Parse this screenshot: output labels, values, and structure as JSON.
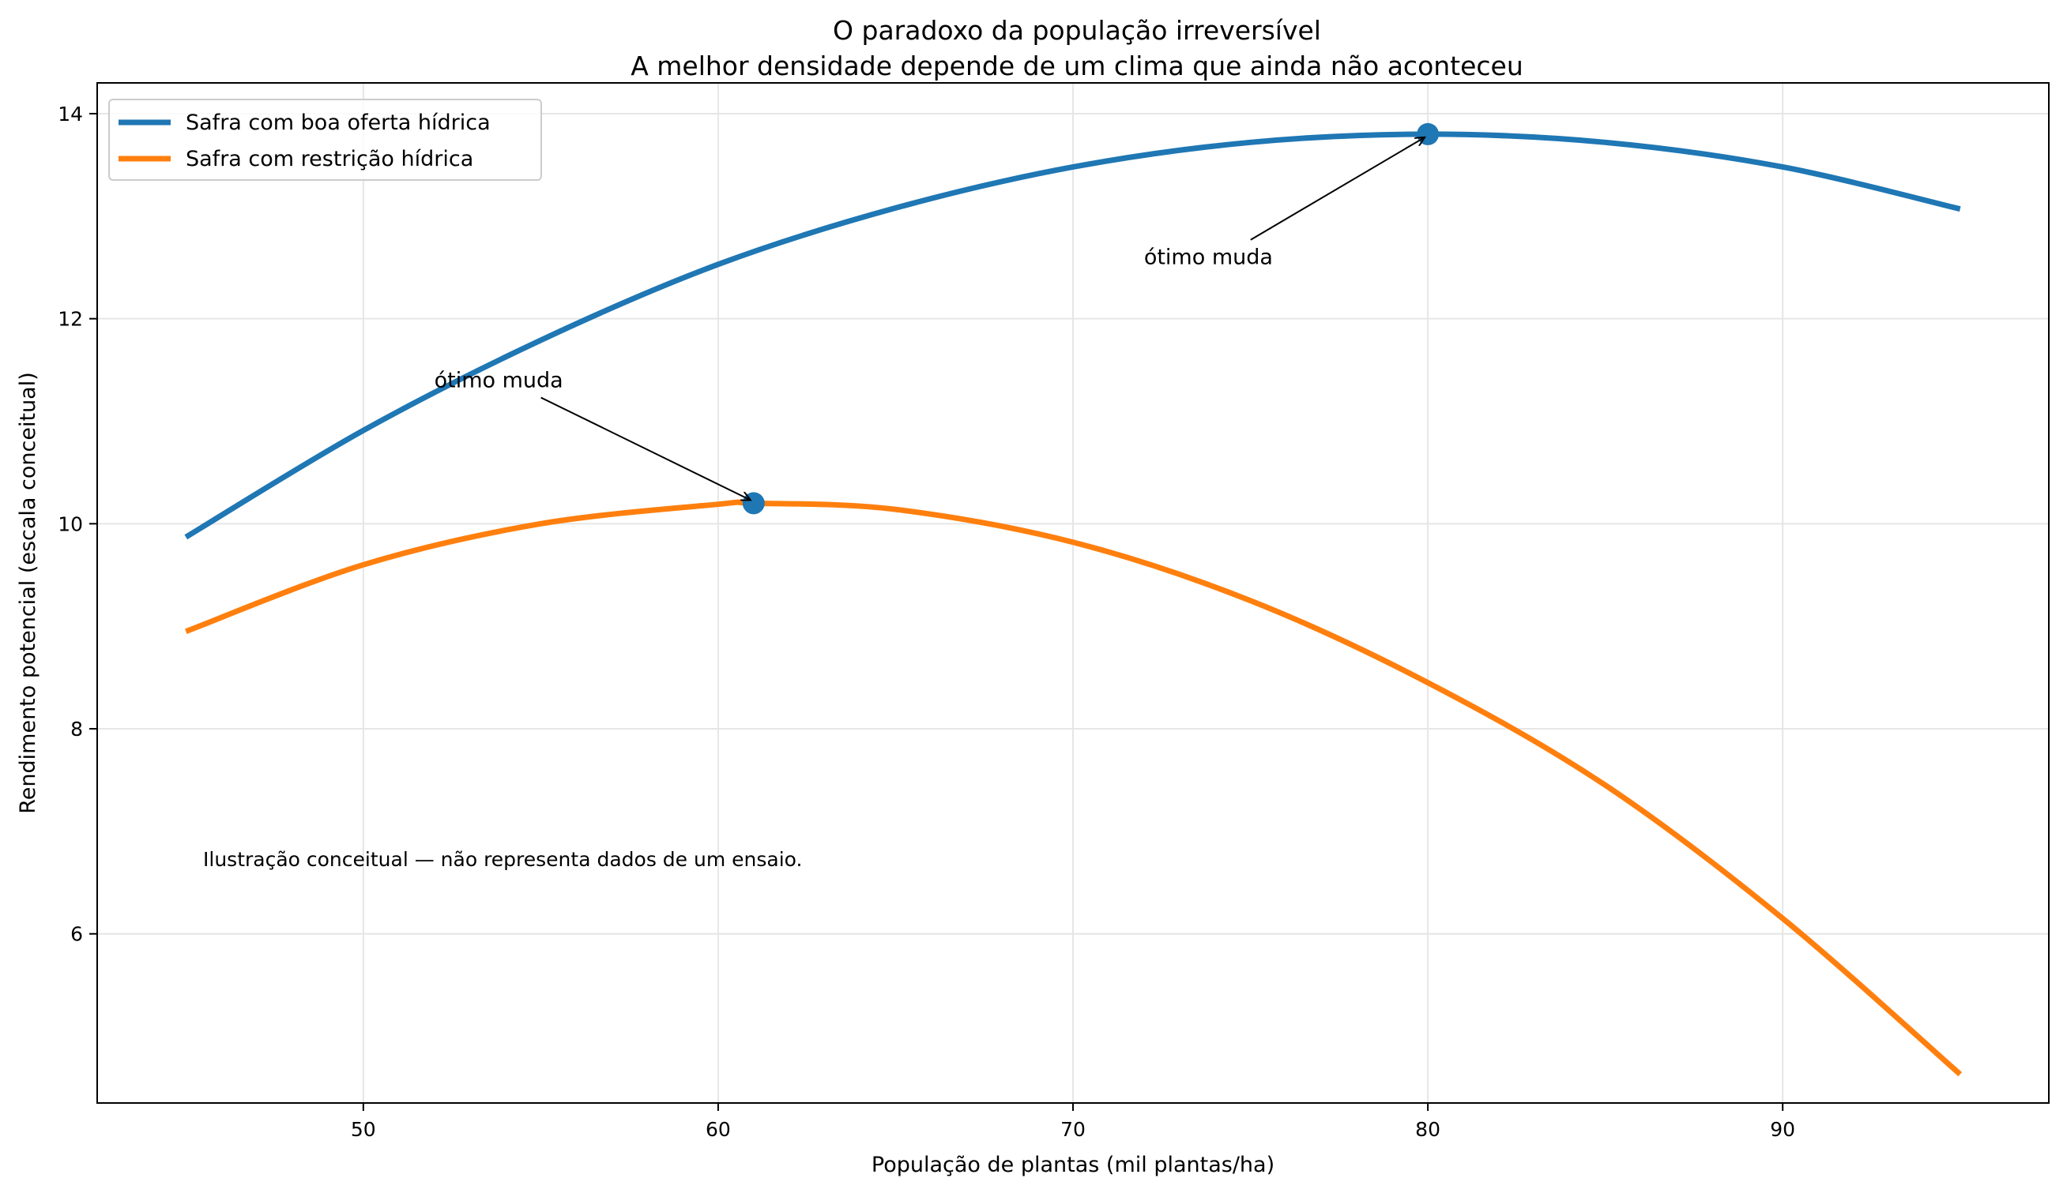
{
  "chart_data": {
    "type": "line",
    "title": "O paradoxo da população irreversível",
    "subtitle": "A melhor densidade depende de um clima que ainda não aconteceu",
    "xlabel": "População de plantas (mil plantas/ha)",
    "ylabel": "Rendimento potencial (escala conceitual)",
    "xlim": [
      42.5,
      97.5
    ],
    "ylim": [
      4.35,
      14.3
    ],
    "xticks": [
      50,
      60,
      70,
      80,
      90
    ],
    "yticks": [
      6,
      8,
      10,
      12,
      14
    ],
    "xtick_labels": [
      "50",
      "60",
      "70",
      "80",
      "90"
    ],
    "ytick_labels": [
      "6",
      "8",
      "10",
      "12",
      "14"
    ],
    "grid": true,
    "legend_position": "top-left",
    "series": [
      {
        "name": "Safra com boa oferta hídrica",
        "color": "#1f77b4",
        "x": [
          45,
          50,
          55,
          60,
          65,
          70,
          75,
          80,
          85,
          90,
          95
        ],
        "y": [
          9.87,
          10.91,
          11.79,
          12.53,
          13.08,
          13.48,
          13.72,
          13.8,
          13.72,
          13.48,
          13.07
        ]
      },
      {
        "name": "Safra com restrição hídrica",
        "color": "#ff7f0e",
        "x": [
          45,
          50,
          55,
          60,
          61,
          65,
          70,
          75,
          80,
          85,
          90,
          95
        ],
        "y": [
          8.95,
          9.6,
          10.0,
          10.19,
          10.2,
          10.14,
          9.82,
          9.25,
          8.45,
          7.45,
          6.15,
          4.63
        ]
      }
    ],
    "optimum_points": [
      {
        "x": 80,
        "y": 13.8,
        "color": "#1f77b4"
      },
      {
        "x": 61,
        "y": 10.2,
        "color": "#1f77b4"
      }
    ],
    "annotations": [
      {
        "text": "ótimo muda",
        "text_x": 72,
        "text_y": 12.6,
        "target_x": 80,
        "target_y": 13.8
      },
      {
        "text": "ótimo muda",
        "text_x": 52,
        "text_y": 11.4,
        "target_x": 61,
        "target_y": 10.2
      }
    ],
    "note": "Ilustração conceitual — não representa dados de um ensaio."
  }
}
